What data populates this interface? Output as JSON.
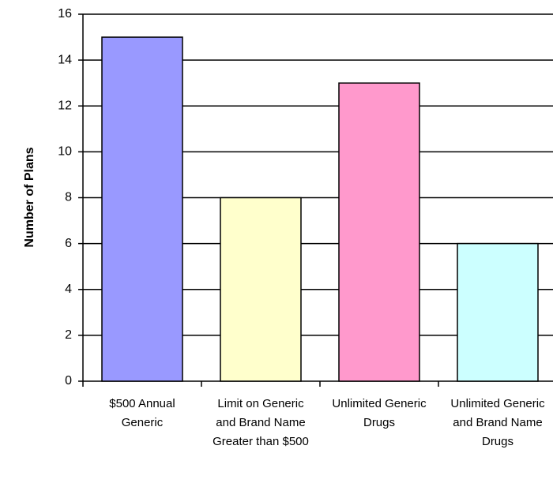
{
  "chart_data": {
    "type": "bar",
    "y_label": "Number of Plans",
    "categories": [
      "$500 Annual Generic",
      "Limit on Generic and Brand Name Greater than $500",
      "Unlimited Generic Drugs",
      "Unlimited Generic and Brand Name Drugs"
    ],
    "values": [
      15,
      8,
      13,
      6
    ],
    "colors": [
      "#9999ff",
      "#ffffcc",
      "#ff99cc",
      "#ccffff"
    ],
    "ylim": [
      0,
      16
    ],
    "yticks": [
      0,
      2,
      4,
      6,
      8,
      10,
      12,
      14,
      16
    ],
    "grid": true
  }
}
